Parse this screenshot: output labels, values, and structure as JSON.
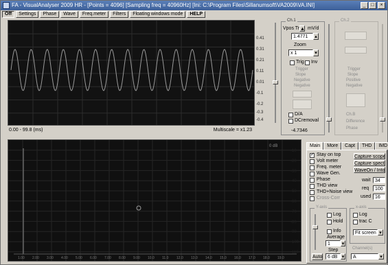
{
  "window": {
    "title": "FA - VisualAnalyser 2009 HR - [Points = 4096] [Sampling freq = 40960Hz] [Ini: C:\\Program Files\\Sillanumsoft\\VA2009\\VA.INI]",
    "controls": [
      "_",
      "□",
      "×"
    ]
  },
  "menu": [
    {
      "label": "Off",
      "active": true
    },
    {
      "label": "Settings"
    },
    {
      "label": "Phase"
    },
    {
      "label": "Wave"
    },
    {
      "label": "Freq.meter"
    },
    {
      "label": "Filters"
    },
    {
      "label": "Floating windows mode"
    },
    {
      "label": "HELP",
      "bold": true
    }
  ],
  "scope": {
    "ytick_labels": [
      "0.41",
      "0.31",
      "0.21",
      "0.11",
      "0.01",
      "-0.1",
      "-0.2",
      "-0.3",
      "-0.4"
    ],
    "status_left": "0.00 - 99.8 (ms)",
    "status_right": "Multiscale = x1.23"
  },
  "channel1": {
    "title": "Ch.1",
    "vpos_trig_label": "Vpos Trig",
    "unit": "mV/d",
    "value": "1.4771",
    "zoom_label": "Zoom",
    "zoom_value": "x 1",
    "trig_label": "Trig",
    "inv_label": "Inv",
    "trigger_label": "Trigger",
    "trigger_options": [
      "Slope",
      "Negative",
      "Negative"
    ],
    "dvm_label": "D/A",
    "dc_removal_label": "DCremoval",
    "readout": "-4.7346"
  },
  "channel2": {
    "title": "Ch.2",
    "trigger_label": "Trigger",
    "trigger_options": [
      "Slope",
      "Positive",
      "Negative"
    ],
    "options": [
      "Ch.B",
      "Difference",
      "Phase"
    ]
  },
  "spectrum": {
    "ytick_labels": [
      "-10",
      "-20",
      "-30",
      "-40",
      "-50",
      "-60",
      "-70",
      "-80",
      "-90",
      "-100",
      "-110"
    ],
    "xtick_labels": [
      "1.00",
      "2.00",
      "3.00",
      "4.00",
      "5.00",
      "6.00",
      "7.00",
      "8.00",
      "9.00",
      "10.0",
      "11.0",
      "12.0",
      "13.0",
      "14.0",
      "15.0",
      "16.0",
      "17.0",
      "18.0",
      "19.0"
    ],
    "corner_label": "0 dB"
  },
  "tabs": [
    {
      "label": "Main",
      "active": true
    },
    {
      "label": "More"
    },
    {
      "label": "Capt"
    },
    {
      "label": "THD"
    },
    {
      "label": "IMD"
    }
  ],
  "main_panel": {
    "checks": [
      {
        "label": "Stay on top",
        "checked": true
      },
      {
        "label": "Volt meter",
        "checked": false
      },
      {
        "label": "Freq. meter",
        "checked": false
      },
      {
        "label": "Wave Gen.",
        "checked": false
      },
      {
        "label": "Phase",
        "checked": false
      },
      {
        "label": "THD view",
        "checked": false
      },
      {
        "label": "THD+Noise view",
        "checked": false
      },
      {
        "label": "Cross-Corr",
        "checked": false
      }
    ],
    "buttons": [
      "Capture scope",
      "Capture spectrum",
      "WaveOn / Into"
    ],
    "fields": [
      {
        "label": "wait",
        "value": "34"
      },
      {
        "label": "req",
        "value": "100"
      },
      {
        "label": "used",
        "value": "16"
      }
    ],
    "group_label": "Y-axis",
    "log_label": "Log",
    "hold_label": "Hold",
    "info_label": "Info",
    "average_label": "Average",
    "average_value": "1",
    "step_label": "Step",
    "step_value": "6 dB",
    "auto_label": "Auto",
    "right_group_label": "x-axis",
    "right_log_label": "Log",
    "right_trac_label": "trac C",
    "fit_label": "Fit screen",
    "channel_label": "Channel(s)",
    "channel_value": "A"
  }
}
